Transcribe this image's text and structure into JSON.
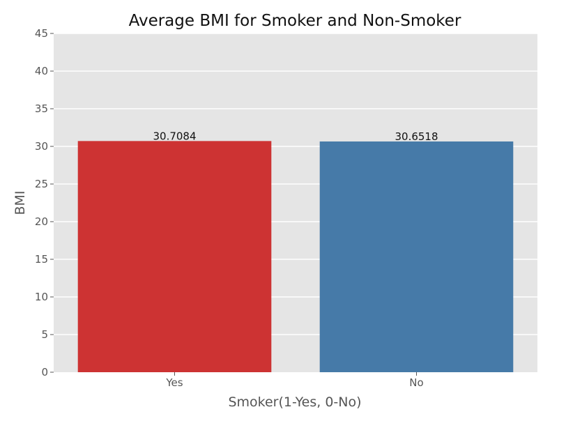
{
  "chart_data": {
    "type": "bar",
    "title": "Average BMI for Smoker and Non-Smoker",
    "xlabel": "Smoker(1-Yes, 0-No)",
    "ylabel": "BMI",
    "categories": [
      "Yes",
      "No"
    ],
    "values": [
      30.7084,
      30.6518
    ],
    "value_labels": [
      "30.7084",
      "30.6518"
    ],
    "colors": [
      "#cd3333",
      "#467aa8"
    ],
    "ylim": [
      0,
      45
    ],
    "yticks": [
      0,
      5,
      10,
      15,
      20,
      25,
      30,
      35,
      40,
      45
    ],
    "grid": true,
    "background": "#e5e5e5",
    "legend": "none"
  }
}
